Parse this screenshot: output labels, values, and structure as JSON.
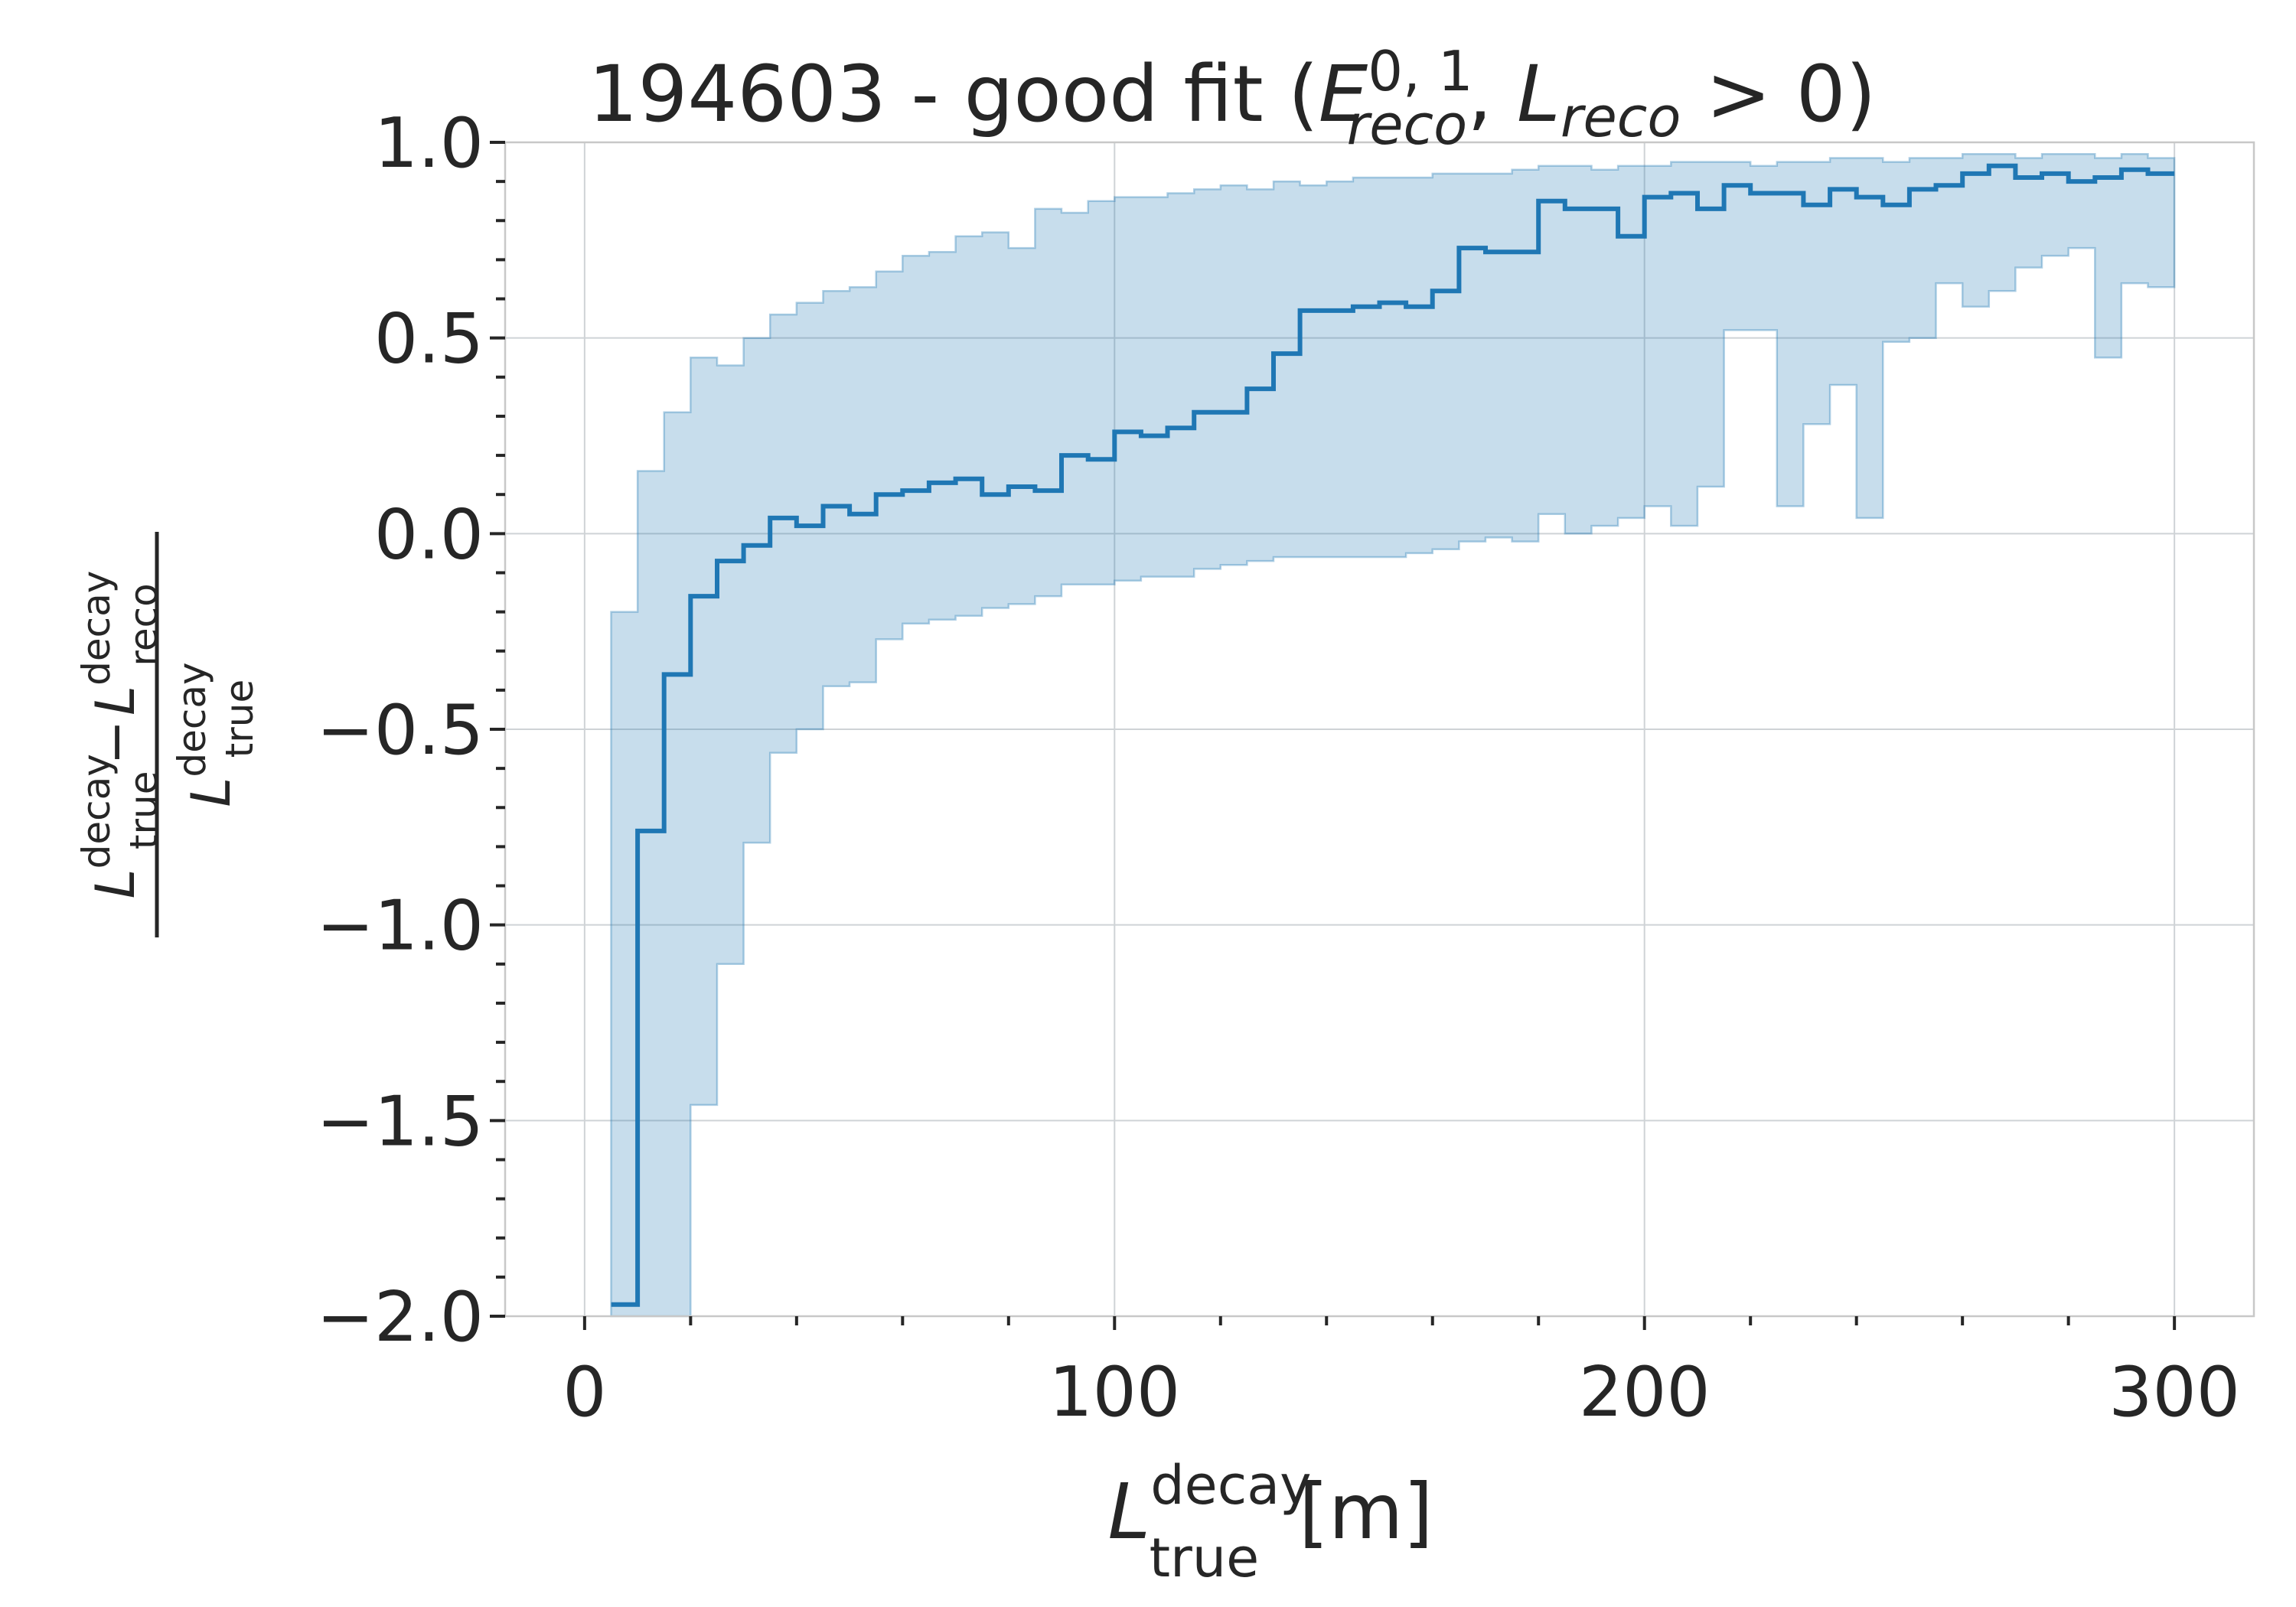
{
  "chart_data": {
    "type": "line",
    "title": {
      "prefix": "194603 - good fit (",
      "e_symbol": "E",
      "e_sup": "0, 1",
      "e_sub": "reco",
      "l_symbol": "L",
      "l_sub": "reco",
      "suffix": " > 0)"
    },
    "xlabel": {
      "symbol": "L",
      "sup": "decay",
      "sub": "true",
      "unit": " [m]"
    },
    "ylabel": {
      "numerator": {
        "a_symbol": "L",
        "a_sup": "decay",
        "a_sub": "true",
        "minus": "−",
        "b_symbol": "L",
        "b_sup": "decay",
        "b_sub": "reco"
      },
      "denominator": {
        "symbol": "L",
        "sup": "decay",
        "sub": "true"
      }
    },
    "xlim": [
      -15,
      315
    ],
    "ylim": [
      -2.0,
      1.0
    ],
    "xticks": [
      0,
      100,
      200,
      300
    ],
    "xtick_labels": [
      "0",
      "100",
      "200",
      "300"
    ],
    "yticks": [
      -2.0,
      -1.5,
      -1.0,
      -0.5,
      0.0,
      0.5,
      1.0
    ],
    "ytick_labels": [
      "−2.0",
      "−1.5",
      "−1.0",
      "−0.5",
      "0.0",
      "0.5",
      "1.0"
    ],
    "grid": true,
    "bin_width": 5,
    "x_start": 5,
    "series": [
      {
        "kind": "step-median",
        "color": "#1f77b4",
        "values": [
          -1.97,
          -0.76,
          -0.36,
          -0.16,
          -0.07,
          -0.03,
          0.04,
          0.02,
          0.07,
          0.05,
          0.1,
          0.11,
          0.13,
          0.14,
          0.1,
          0.12,
          0.11,
          0.2,
          0.19,
          0.26,
          0.25,
          0.27,
          0.31,
          0.31,
          0.37,
          0.46,
          0.57,
          0.57,
          0.58,
          0.59,
          0.58,
          0.62,
          0.73,
          0.72,
          0.72,
          0.85,
          0.83,
          0.83,
          0.76,
          0.86,
          0.87,
          0.83,
          0.89,
          0.87,
          0.87,
          0.84,
          0.88,
          0.86,
          0.84,
          0.88,
          0.89,
          0.92,
          0.94,
          0.91,
          0.92,
          0.9,
          0.91,
          0.93,
          0.92
        ]
      },
      {
        "kind": "step-band",
        "color": "#1f77b4",
        "upper": [
          -0.2,
          0.16,
          0.31,
          0.45,
          0.43,
          0.5,
          0.56,
          0.59,
          0.62,
          0.63,
          0.67,
          0.71,
          0.72,
          0.76,
          0.77,
          0.73,
          0.83,
          0.82,
          0.85,
          0.86,
          0.86,
          0.87,
          0.88,
          0.89,
          0.88,
          0.9,
          0.89,
          0.9,
          0.91,
          0.91,
          0.91,
          0.92,
          0.92,
          0.92,
          0.93,
          0.94,
          0.94,
          0.93,
          0.94,
          0.94,
          0.95,
          0.95,
          0.95,
          0.94,
          0.95,
          0.95,
          0.96,
          0.96,
          0.95,
          0.96,
          0.96,
          0.97,
          0.97,
          0.96,
          0.97,
          0.97,
          0.96,
          0.97,
          0.96
        ],
        "lower": [
          -2.0,
          -2.0,
          -2.0,
          -1.46,
          -1.1,
          -0.79,
          -0.56,
          -0.5,
          -0.39,
          -0.38,
          -0.27,
          -0.23,
          -0.22,
          -0.21,
          -0.19,
          -0.18,
          -0.16,
          -0.13,
          -0.13,
          -0.12,
          -0.11,
          -0.11,
          -0.09,
          -0.08,
          -0.07,
          -0.06,
          -0.06,
          -0.06,
          -0.06,
          -0.06,
          -0.05,
          -0.04,
          -0.02,
          -0.01,
          -0.02,
          0.05,
          0.0,
          0.02,
          0.04,
          0.07,
          0.02,
          0.12,
          0.52,
          0.52,
          0.07,
          0.28,
          0.38,
          0.04,
          0.49,
          0.5,
          0.64,
          0.58,
          0.62,
          0.68,
          0.71,
          0.73,
          0.45,
          0.64,
          0.63
        ]
      }
    ]
  }
}
